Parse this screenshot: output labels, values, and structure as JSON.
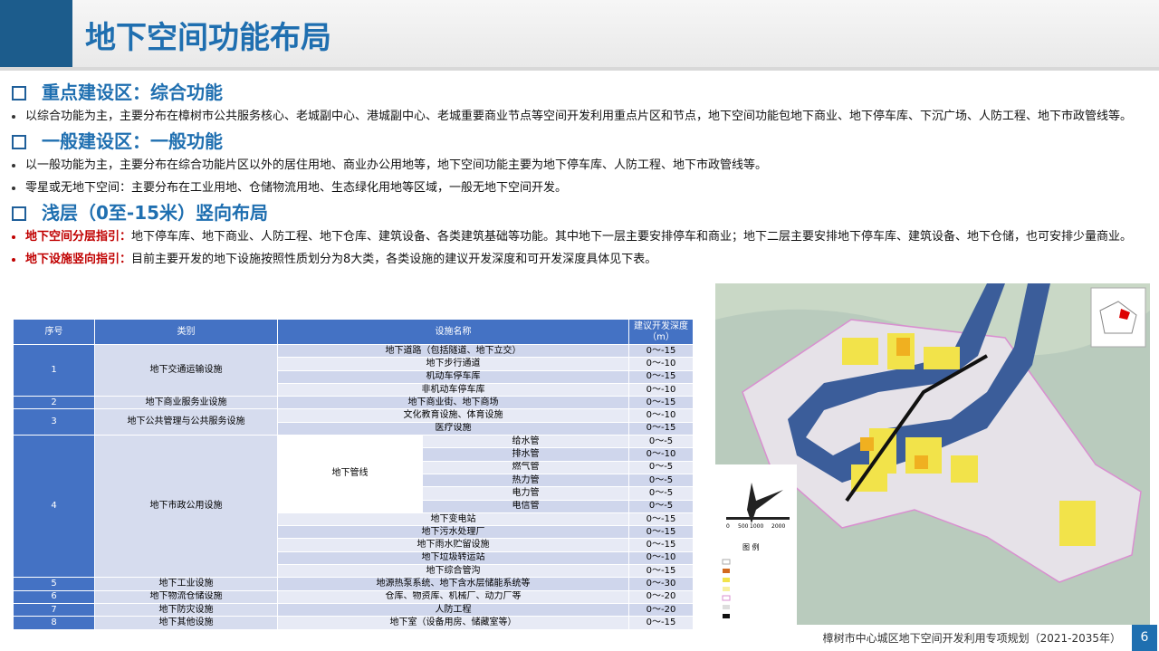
{
  "header": {
    "title": "地下空间功能布局"
  },
  "sections": [
    {
      "heading": "重点建设区：综合功能",
      "bullets": [
        {
          "text": "以综合功能为主，主要分布在樟树市公共服务核心、老城副中心、港城副中心、老城重要商业节点等空间开发利用重点片区和节点，地下空间功能包地下商业、地下停车库、下沉广场、人防工程、地下市政管线等。"
        }
      ]
    },
    {
      "heading": "一般建设区：一般功能",
      "bullets": [
        {
          "text": "以一般功能为主，主要分布在综合功能片区以外的居住用地、商业办公用地等，地下空间功能主要为地下停车库、人防工程、地下市政管线等。"
        },
        {
          "text": "零星或无地下空间：主要分布在工业用地、仓储物流用地、生态绿化用地等区域，一般无地下空间开发。"
        }
      ]
    },
    {
      "heading": "浅层（0至-15米）竖向布局",
      "bullets": [
        {
          "lead": "地下空间分层指引：",
          "text": "地下停车库、地下商业、人防工程、地下仓库、建筑设备、各类建筑基础等功能。其中地下一层主要安排停车和商业；地下二层主要安排地下停车库、建筑设备、地下仓储，也可安排少量商业。"
        },
        {
          "lead": "地下设施竖向指引：",
          "text": "目前主要开发的地下设施按照性质划分为8大类，各类设施的建议开发深度和可开发深度具体见下表。"
        }
      ]
    }
  ],
  "table": {
    "headers": [
      "序号",
      "类别",
      "设施名称",
      "建议开发深度（m）"
    ],
    "groups": [
      {
        "no": "1",
        "category": "地下交通运输设施",
        "items": [
          {
            "name": "地下道路（包括隧道、地下立交）",
            "depth": "0～-15"
          },
          {
            "name": "地下步行通道",
            "depth": "0～-10"
          },
          {
            "name": "机动车停车库",
            "depth": "0～-15"
          },
          {
            "name": "非机动车停车库",
            "depth": "0～-10"
          }
        ]
      },
      {
        "no": "2",
        "category": "地下商业服务业设施",
        "items": [
          {
            "name": "地下商业街、地下商场",
            "depth": "0～-15"
          }
        ]
      },
      {
        "no": "3",
        "category": "地下公共管理与公共服务设施",
        "items": [
          {
            "name": "文化教育设施、体育设施",
            "depth": "0～-10"
          },
          {
            "name": "医疗设施",
            "depth": "0～-15"
          }
        ]
      },
      {
        "no": "4",
        "category": "地下市政公用设施",
        "items": [
          {
            "name": "地下管线",
            "items": [
              {
                "name": "给水管",
                "depth": "0～-5"
              },
              {
                "name": "排水管",
                "depth": "0～-10"
              },
              {
                "name": "燃气管",
                "depth": "0～-5"
              },
              {
                "name": "热力管",
                "depth": "0～-5"
              },
              {
                "name": "电力管",
                "depth": "0～-5"
              },
              {
                "name": "电信管",
                "depth": "0～-5"
              }
            ]
          },
          {
            "name": "地下变电站",
            "depth": "0～-15"
          },
          {
            "name": "地下污水处理厂",
            "depth": "0～-15"
          },
          {
            "name": "地下雨水贮留设施",
            "depth": "0～-15"
          },
          {
            "name": "地下垃圾转运站",
            "depth": "0～-10"
          },
          {
            "name": "地下综合管沟",
            "depth": "0～-15"
          }
        ]
      },
      {
        "no": "5",
        "category": "地下工业设施",
        "items": [
          {
            "name": "地源热泵系统、地下含水层储能系统等",
            "depth": "0～-30"
          }
        ]
      },
      {
        "no": "6",
        "category": "地下物流仓储设施",
        "items": [
          {
            "name": "仓库、物资库、机械厂、动力厂等",
            "depth": "0～-20"
          }
        ]
      },
      {
        "no": "7",
        "category": "地下防灾设施",
        "items": [
          {
            "name": "人防工程",
            "depth": "0～-20"
          }
        ]
      },
      {
        "no": "8",
        "category": "地下其他设施",
        "items": [
          {
            "name": "地下室（设备用房、储藏室等）",
            "depth": "0～-15"
          }
        ]
      }
    ]
  },
  "map": {
    "legend_title": "图 例",
    "scale_labels": [
      "0",
      "500",
      "1000",
      "2000"
    ]
  },
  "footer": {
    "text": "樟树市中心城区地下空间开发利用专项规划（2021-2035年）",
    "page": "6"
  }
}
